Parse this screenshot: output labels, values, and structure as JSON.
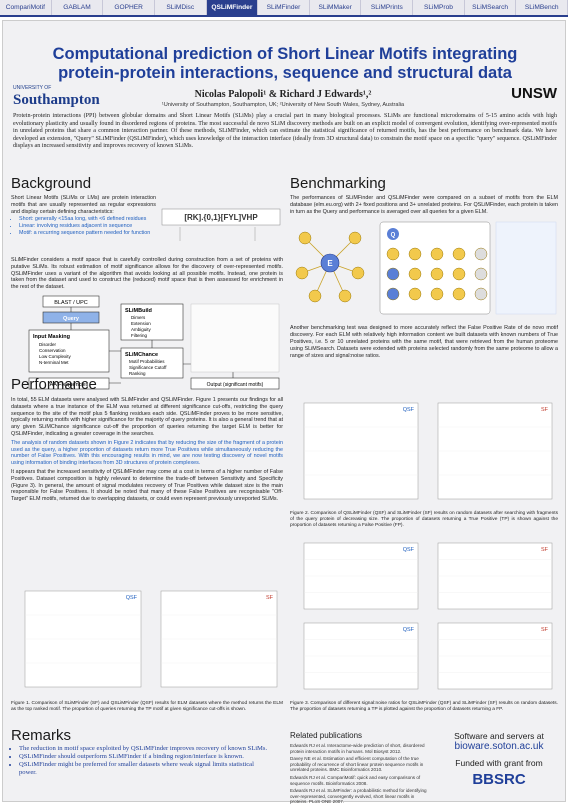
{
  "nav": [
    "CompariMotif",
    "GABLAM",
    "GOPHER",
    "SLiMDisc",
    "QSLiMFinder",
    "SLiMFinder",
    "SLiMMaker",
    "SLiMPrints",
    "SLiMProb",
    "SLiMSearch",
    "SLiMBench"
  ],
  "header": {
    "title": "Computational prediction of Short Linear Motifs integrating protein-protein interactions, sequence and structural data",
    "authors": "Nicolas Palopoli¹ & Richard J Edwards¹,²",
    "affiliations": "¹University of Southampton, Southampton, UK; ²University of New South Wales, Sydney, Australia",
    "logo_left_small": "UNIVERSITY OF",
    "logo_left": "Southampton",
    "logo_right": "UNSW"
  },
  "abstract": "Protein-protein interactions (PPI) between globular domains and Short Linear Motifs (SLiMs) play a crucial part in many biological processes. SLiMs are functional microdomains of 5-15 amino acids with high evolutionary plasticity and usually found in disordered regions of proteins. The most successful de novo SLiM discovery methods are built on an explicit model of convergent evolution, identifying over-represented motifs in unrelated proteins that share a common interaction partner. Of these methods, SLiMFinder, which can estimate the statistical significance of returned motifs, has the best performance on benchmark data. We have developed an extension, \"Query\" SLiMFinder (QSLiMFinder), which uses knowledge of the interaction interface (ideally from 3D structural data) to constrain the motif space on a specific \"query\" sequence. QSLiMFinder displays an increased sensitivity and improves recovery of known SLiMs.",
  "background": {
    "heading": "Background",
    "intro": "Short Linear Motifs (SLiMs or LMs) are protein interaction motifs that are usually represented as regular expressions and display certain defining characteristics:",
    "bullets": [
      "Short: generally <15aa long, with <6 defined residues",
      "Linear: involving residues adjacent in sequence",
      "Motif: a recurring sequence pattern needed for function"
    ],
    "regex": "[RK].{0,1}[FYL]VHP",
    "text": "SLiMFinder considers a motif space that is carefully controlled during construction from a set of proteins with putative SLiMs. Its robust estimation of motif significance allows for the discovery of over-represented motifs. QSLiMFinder uses a variant of the algorithm that avoids looking at all possible motifs. Instead, one protein is taken from the dataset and used to construct the (reduced) motif space that is then assessed for enrichment in the rest of the dataset.",
    "diagram": {
      "blast": "BLAST / UPC",
      "query": "Query",
      "masking": "Input Masking",
      "masking_items": [
        "Disorder",
        "Conservation",
        "Low Complexity",
        "N-terminal Met"
      ],
      "slimbuild": "SLiMBuild",
      "slimbuild_items": [
        "Dimers",
        "Extension",
        "Ambiguity",
        "Filtering"
      ],
      "slimchance": "SLiMChance",
      "slimchance_items": [
        "Motif Probabilities",
        "Significance Cutoff",
        "Ranking"
      ],
      "aafreq": "AA Frequencies",
      "output": "Output (significant motifs)"
    }
  },
  "benchmarking": {
    "heading": "Benchmarking",
    "text1": "The performances of SLiMFinder and QSLiMFinder were compared on a subset of motifs from the ELM database (elm.eu.org) with 2+ fixed positions and 3+ unrelated proteins. For QSLiMFinder, each protein is taken in turn as the Query and performance is averaged over all queries for a given ELM.",
    "hub": "E",
    "query": "Q",
    "text2": "Another benchmarking test was designed to more accurately reflect the False Positive Rate of de novo motif discovery. For each ELM with relatively high information content we built datasets with known numbers of True Positives, i.e. 5 or 10 unrelated proteins with the same motif, that were retrieved from the human proteome using SLiMSearch. Datasets were extended with proteins selected randomly from the same proteome to allow a range of sizes and signal:noise ratios."
  },
  "performance": {
    "heading": "Performance",
    "text": [
      "In total, 55 ELM datasets were analysed with SLiMFinder and QSLiMFinder. Figure 1 presents our findings for all datasets where a true instance of the ELM was returned at different significance cut-offs, restricting the query sequence to the site of the motif plus 5 flanking residues each side. QSLiMFinder proves to be more sensitive, typically returning motifs with higher significance for the majority of query proteins. It is also a general trend that at any given SLiMChance significance cut-off the proportion of queries returning the target ELM is better for QSLiMFinder, indicating a greater coverage in the searches.",
      "The analysis of random datasets shown in Figure 2 indicates that by reducing the size of the fragment of a protein used as the query, a higher proportion of datasets return more True Positives while simultaneously reducing the number of False Positives. With this encouraging results in mind, we are now testing discovery of novel motifs using information of binding interfaces from 3D structures of protein complexes.",
      "It appears that the increased sensitivity of QSLiMFinder may come at a cost in terms of a higher number of False Positives. Dataset composition is highly relevant to determine the trade-off between Sensitivity and Specificity (Figure 3). In general, the amount of signal modulates recovery of True Positives while dataset size is the main responsible for False Positives. It should be noted that many of these False Positives are recognisable \"Off-Target\" ELM motifs, returned due to overlapping datasets, or could even represent previously unreported SLiMs."
    ],
    "figures": [
      {
        "caption": "Figure 1. Comparison of SLiMFinder (SF) and QSLiMFinder (QSF) results for ELM datasets where the method returns the ELM as the top ranked motif. The proportion of queries returning the TP motif at given significance cut-offs is shown.",
        "panels": [
          "QSF",
          "SF"
        ]
      },
      {
        "caption": "Figure 2. Comparison of QSLiMFinder (QSF) and SLiMFinder (SF) results on random datasets after searching with fragments of the query protein of decreasing size. The proportion of datasets returning a True Positive (TP) is shown against the proportion of datasets returning a False Positive (FP).",
        "panels": [
          "QSF",
          "SF"
        ]
      },
      {
        "caption": "Figure 3. Comparison of different signal:noise ratios for QSLiMFinder (QSF) and SLiMFinder (SF) results on random datasets. The proportion of datasets returning a TP is plotted against the proportion of datasets returning a FP.",
        "panels": [
          "QSF",
          "SF"
        ]
      }
    ]
  },
  "remarks": {
    "heading": "Remarks",
    "bullets": [
      "The reduction in motif space exploited by QSLiMFinder improves recovery of known SLiMs.",
      "QSLiMFinder should outperform SLiMFinder if a binding region/interface is known.",
      "QSLiMFinder might be preferred for smaller datasets where weak signal limits statistical power."
    ]
  },
  "publications": {
    "heading": "Related publications",
    "items": [
      "Edwards RJ et al. Interactome-wide prediction of short, disordered protein interaction motifs in humans. Mol Biosyst 2012.",
      "Davey NE et al. Estimation and efficient computation of the true probability of recurrence of short linear protein sequence motifs in unrelated proteins. BMC Bioinformatics 2010.",
      "Edwards RJ et al. CompariMotif: quick and easy comparisons of sequence motifs. Bioinformatics 2008.",
      "Edwards RJ et al. SLiMFinder: a probabilistic method for identifying over-represented, convergently evolved, short linear motifs in proteins. PLoS ONE 2007."
    ]
  },
  "footer": {
    "software": "Software and servers at",
    "url": "bioware.soton.ac.uk",
    "funded": "Funded with grant from",
    "funder": "BBSRC"
  }
}
